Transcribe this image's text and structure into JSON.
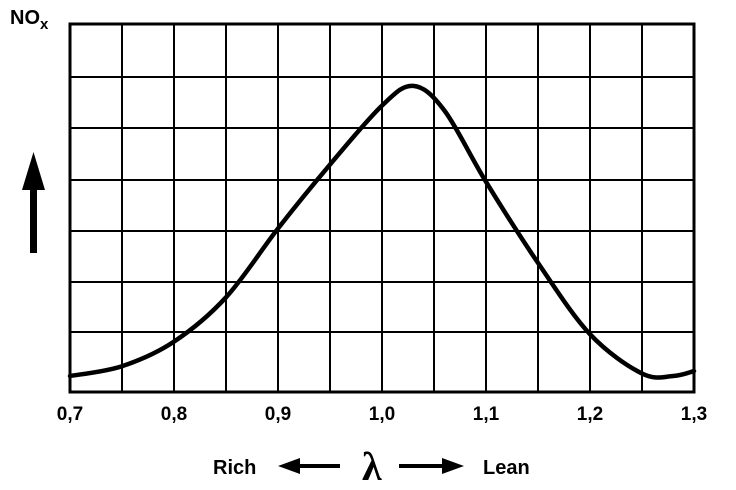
{
  "chart_data": {
    "type": "line",
    "ylabel": "NO",
    "ylabel_subscript": "x",
    "xlabel_symbol": "λ",
    "x_left_label": "Rich",
    "x_right_label": "Lean",
    "xlim": [
      0.7,
      1.3
    ],
    "ylim": [
      0,
      6
    ],
    "grid": true,
    "x_tick_labels": [
      "0,7",
      "0,8",
      "0,9",
      "1,0",
      "1,1",
      "1,2",
      "1,3"
    ],
    "series": [
      {
        "x": [
          0.7,
          0.75,
          0.8,
          0.85,
          0.9,
          0.95,
          1.0,
          1.03,
          1.06,
          1.1,
          1.15,
          1.2,
          1.25,
          1.28,
          1.3
        ],
        "values": [
          0.0,
          0.2,
          0.7,
          1.6,
          3.0,
          4.3,
          5.5,
          5.9,
          5.4,
          3.95,
          2.3,
          0.85,
          0.05,
          0.0,
          0.1
        ]
      }
    ]
  }
}
